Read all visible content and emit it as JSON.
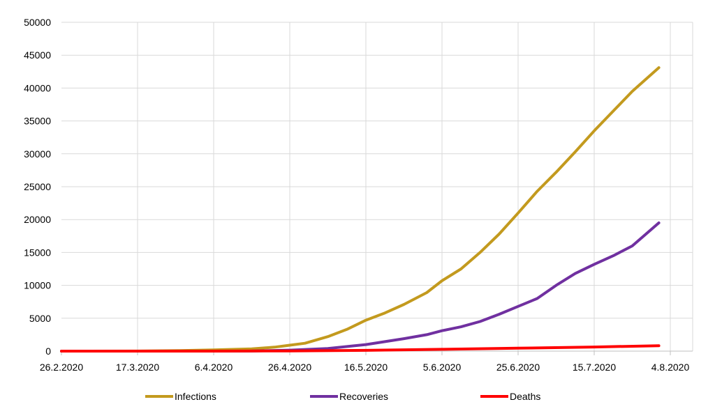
{
  "chart_data": {
    "type": "line",
    "title": "",
    "xlabel": "",
    "ylabel": "",
    "x_ticks": [
      "26.2.2020",
      "17.3.2020",
      "6.4.2020",
      "26.4.2020",
      "16.5.2020",
      "5.6.2020",
      "25.6.2020",
      "15.7.2020",
      "4.8.2020"
    ],
    "y_ticks": [
      "0",
      "5000",
      "10000",
      "15000",
      "20000",
      "25000",
      "30000",
      "35000",
      "40000",
      "45000",
      "50000"
    ],
    "xlim": [
      "2020-02-26",
      "2020-08-04"
    ],
    "ylim": [
      0,
      50000
    ],
    "grid": true,
    "legend_position": "bottom",
    "series": [
      {
        "name": "Infections",
        "color": "#c39a1e",
        "points": [
          [
            "2020-02-26",
            0
          ],
          [
            "2020-03-17",
            10
          ],
          [
            "2020-03-28",
            80
          ],
          [
            "2020-04-06",
            180
          ],
          [
            "2020-04-16",
            350
          ],
          [
            "2020-04-22",
            600
          ],
          [
            "2020-04-26",
            900
          ],
          [
            "2020-04-30",
            1200
          ],
          [
            "2020-05-06",
            2200
          ],
          [
            "2020-05-11",
            3300
          ],
          [
            "2020-05-16",
            4700
          ],
          [
            "2020-05-21",
            5800
          ],
          [
            "2020-05-26",
            7100
          ],
          [
            "2020-06-01",
            8900
          ],
          [
            "2020-06-05",
            10700
          ],
          [
            "2020-06-10",
            12500
          ],
          [
            "2020-06-15",
            15000
          ],
          [
            "2020-06-20",
            17800
          ],
          [
            "2020-06-25",
            21000
          ],
          [
            "2020-06-30",
            24300
          ],
          [
            "2020-07-05",
            27200
          ],
          [
            "2020-07-10",
            30300
          ],
          [
            "2020-07-15",
            33500
          ],
          [
            "2020-07-20",
            36500
          ],
          [
            "2020-07-25",
            39500
          ],
          [
            "2020-08-01",
            43100
          ]
        ]
      },
      {
        "name": "Recoveries",
        "color": "#7030a0",
        "points": [
          [
            "2020-02-26",
            0
          ],
          [
            "2020-04-16",
            10
          ],
          [
            "2020-04-26",
            150
          ],
          [
            "2020-05-06",
            400
          ],
          [
            "2020-05-16",
            1000
          ],
          [
            "2020-05-26",
            1900
          ],
          [
            "2020-06-01",
            2500
          ],
          [
            "2020-06-05",
            3100
          ],
          [
            "2020-06-10",
            3700
          ],
          [
            "2020-06-15",
            4500
          ],
          [
            "2020-06-20",
            5600
          ],
          [
            "2020-06-25",
            6800
          ],
          [
            "2020-06-30",
            8000
          ],
          [
            "2020-07-05",
            10000
          ],
          [
            "2020-07-10",
            11800
          ],
          [
            "2020-07-15",
            13200
          ],
          [
            "2020-07-20",
            14500
          ],
          [
            "2020-07-25",
            16000
          ],
          [
            "2020-07-28",
            17500
          ],
          [
            "2020-08-01",
            19500
          ]
        ]
      },
      {
        "name": "Deaths",
        "color": "#ff0000",
        "points": [
          [
            "2020-02-26",
            0
          ],
          [
            "2020-04-06",
            5
          ],
          [
            "2020-04-26",
            30
          ],
          [
            "2020-05-16",
            120
          ],
          [
            "2020-06-05",
            280
          ],
          [
            "2020-06-25",
            450
          ],
          [
            "2020-07-15",
            620
          ],
          [
            "2020-08-01",
            830
          ]
        ]
      }
    ]
  }
}
